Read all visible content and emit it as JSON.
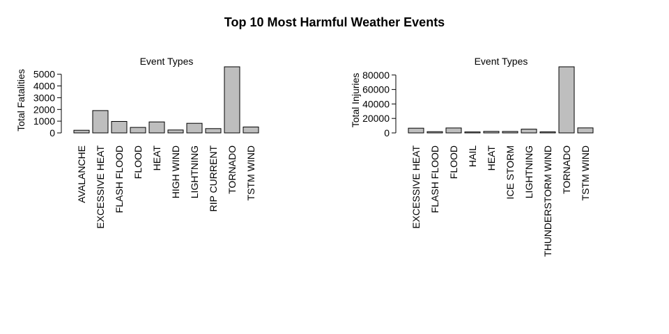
{
  "figure": {
    "title": "Top 10 Most Harmful Weather Events"
  },
  "colors": {
    "bar_fill": "#bebebe",
    "bar_stroke": "#000000",
    "text": "#000000"
  },
  "chart_data": [
    {
      "type": "bar",
      "title": "Event Types",
      "xlabel": "",
      "ylabel": "Total Fatalities",
      "categories": [
        "AVALANCHE",
        "EXCESSIVE HEAT",
        "FLASH FLOOD",
        "FLOOD",
        "HEAT",
        "HIGH WIND",
        "LIGHTNING",
        "RIP CURRENT",
        "TORNADO",
        "TSTM WIND"
      ],
      "values": [
        224,
        1903,
        978,
        470,
        937,
        248,
        816,
        368,
        5633,
        504
      ],
      "yticks": [
        0,
        1000,
        2000,
        3000,
        4000,
        5000
      ],
      "ylim": [
        0,
        5633
      ],
      "grid": false,
      "legend": "none"
    },
    {
      "type": "bar",
      "title": "Event Types",
      "xlabel": "",
      "ylabel": "Total Injuries",
      "categories": [
        "EXCESSIVE HEAT",
        "FLASH FLOOD",
        "FLOOD",
        "HAIL",
        "HEAT",
        "ICE STORM",
        "LIGHTNING",
        "THUNDERSTORM WIND",
        "TORNADO",
        "TSTM WIND"
      ],
      "values": [
        6525,
        1777,
        6789,
        1361,
        2100,
        1975,
        5230,
        1488,
        91346,
        6957
      ],
      "yticks": [
        0,
        20000,
        40000,
        60000,
        80000
      ],
      "ylim": [
        0,
        91346
      ],
      "grid": false,
      "legend": "none"
    }
  ]
}
